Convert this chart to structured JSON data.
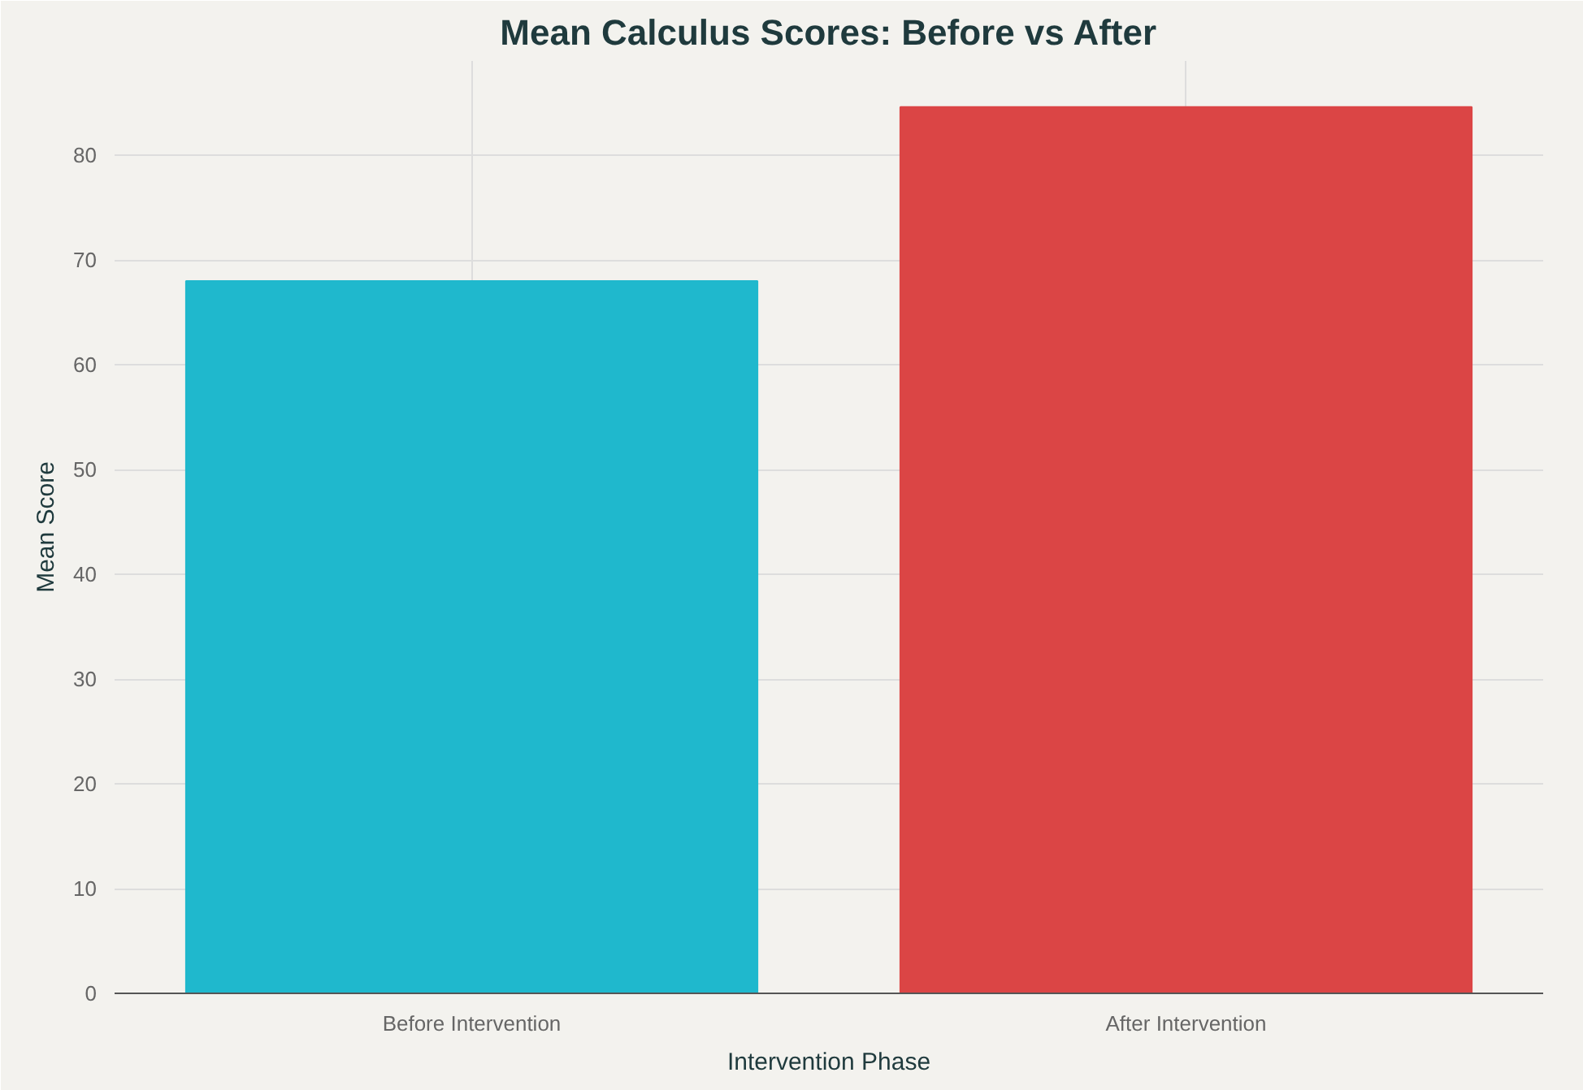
{
  "chart_data": {
    "type": "bar",
    "title": "Mean Calculus Scores: Before vs After",
    "xlabel": "Intervention Phase",
    "ylabel": "Mean Score",
    "categories": [
      "Before Intervention",
      "After Intervention"
    ],
    "values": [
      68.0,
      84.6
    ],
    "colors": [
      "#1fb8cd",
      "#db4545"
    ],
    "ylim": [
      0,
      89
    ],
    "yticks": [
      0,
      10,
      20,
      30,
      40,
      50,
      60,
      70,
      80
    ],
    "grid": true
  }
}
